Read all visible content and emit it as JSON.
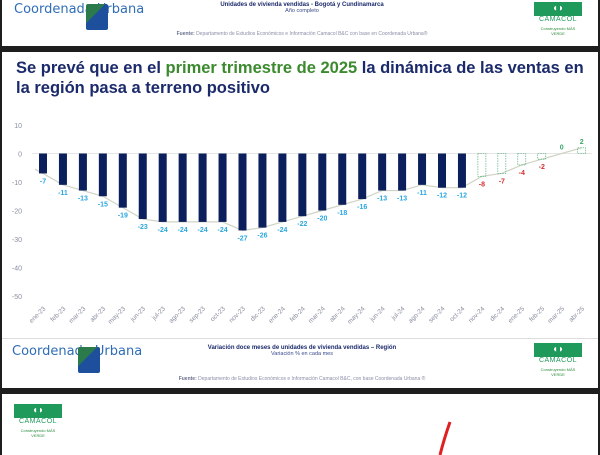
{
  "top_header": {
    "logo_left": "Coordenada Urbana",
    "title": "Unidades de vivienda vendidas - Bogotá y Cundinamarca",
    "subtitle": "Año completo",
    "source_label": "Fuente:",
    "source_text": "Departamento de Estudios Económicos e Información Camacol B&C con base en Coordenada Urbana®",
    "logo_right": "CAMACOL",
    "tagline": "Construyendo MÁS VERDE"
  },
  "slide": {
    "title_part1": "Se prevé que en el ",
    "title_highlight": "primer trimestre de 2025",
    "title_part2": " la dinámica de las ventas en la región pasa a terreno positivo"
  },
  "chart_data": {
    "type": "bar",
    "title": "",
    "xlabel": "",
    "ylabel": "",
    "ylim": [
      -50,
      10
    ],
    "yticks": [
      10,
      0,
      -10,
      -20,
      -30,
      -40,
      -50
    ],
    "grid": false,
    "categories": [
      "ene-23",
      "feb-23",
      "mar-23",
      "abr-23",
      "may-23",
      "jun-23",
      "jul-23",
      "ago-23",
      "sep-23",
      "oct-23",
      "nov-23",
      "dic-23",
      "ene-24",
      "feb-24",
      "mar-24",
      "abr-24",
      "may-24",
      "jun-24",
      "jul-24",
      "ago-24",
      "sep-24",
      "oct-24",
      "nov-24",
      "dic-24",
      "ene-25",
      "feb-25",
      "mar-25",
      "abr-25"
    ],
    "values": [
      -7,
      -11,
      -13,
      -15,
      -19,
      -23,
      -24,
      -24,
      -24,
      -24,
      -27,
      -26,
      -24,
      -22,
      -20,
      -18,
      -16,
      -13,
      -13,
      -11,
      -12,
      -12,
      -8,
      -7,
      -4,
      -2,
      0,
      2
    ],
    "projected_from_index": 22,
    "trendline": true,
    "colors": {
      "actual_bar": "#0b1f5c",
      "actual_label": "#2aa7e0",
      "projected_bar_outline": "#3aa66a",
      "projected_negative_label": "#d32f2f",
      "projected_positive_label": "#3aa66a",
      "trendline": "#cfd3c4"
    }
  },
  "footer": {
    "logo_left": "Coordenada Urbana",
    "title": "Variación doce meses de unidades de vivienda vendidas – Región",
    "subtitle": "Variación % en cada mes",
    "source_label": "Fuente:",
    "source_text": "Departamento de Estudios Económicos e Información Camacol B&C, con base Coordenada Urbana ®",
    "logo_right": "CAMACOL",
    "tagline": "Construyendo MÁS VERDE"
  },
  "next_slide": {
    "logo": "CAMACOL",
    "tagline": "Construyendo MÁS VERDE"
  }
}
